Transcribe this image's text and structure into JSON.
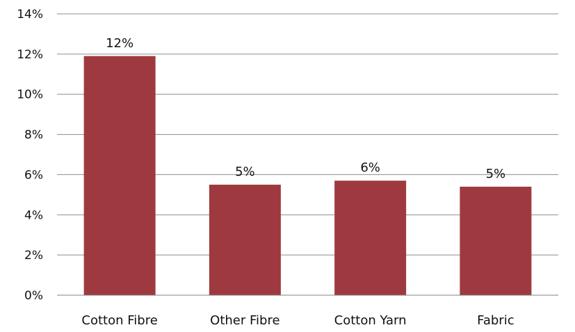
{
  "chart_data": {
    "type": "bar",
    "title": "",
    "xlabel": "",
    "ylabel": "",
    "categories": [
      "Cotton Fibre",
      "Other Fibre",
      "Cotton Yarn",
      "Fabric"
    ],
    "values": [
      0.119,
      0.055,
      0.057,
      0.054
    ],
    "data_labels": [
      "12%",
      "5%",
      "6%",
      "5%"
    ],
    "ylim": [
      0,
      0.14
    ],
    "yticks": [
      0,
      0.02,
      0.04,
      0.06,
      0.08,
      0.1,
      0.12,
      0.14
    ],
    "ytick_labels": [
      "0%",
      "2%",
      "4%",
      "6%",
      "8%",
      "10%",
      "12%",
      "14%"
    ],
    "grid": true,
    "legend": "none",
    "colors": {
      "bar": "#9E3A3F",
      "grid": "#8C8C8C",
      "text": "#111111"
    }
  }
}
